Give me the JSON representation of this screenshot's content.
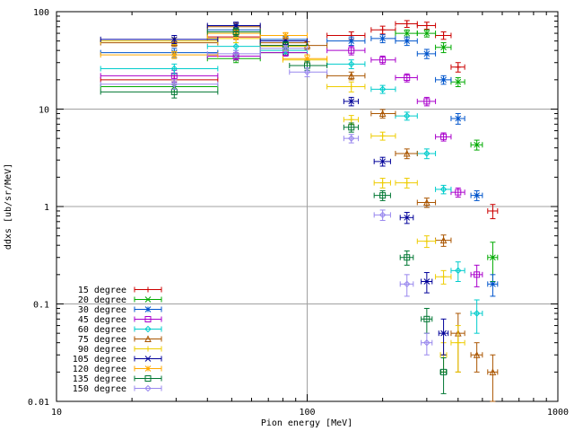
{
  "chart_data": {
    "type": "scatter",
    "xlabel": "Pion energy [MeV]",
    "ylabel": "ddxs [ub/sr/MeV]",
    "x_scale": "log",
    "y_scale": "log",
    "xlim": [
      10,
      1000
    ],
    "ylim": [
      0.01,
      100
    ],
    "grid": true,
    "legend_position": "bottom-left",
    "x_ticks": [
      "10",
      "100",
      "1000"
    ],
    "y_ticks": [
      "0.01",
      "0.1",
      "1",
      "10",
      "100"
    ],
    "series": [
      {
        "name": "15 degree",
        "color": "#cc0000",
        "marker": "plus",
        "points": [
          [
            29.5,
            20,
            15,
            44,
            2
          ],
          [
            52,
            55,
            40,
            65,
            3
          ],
          [
            82,
            45,
            65,
            100,
            3
          ],
          [
            150,
            57,
            120,
            170,
            5
          ],
          [
            200,
            65,
            180,
            225,
            6
          ],
          [
            250,
            75,
            225,
            275,
            6
          ],
          [
            300,
            72,
            275,
            325,
            6
          ],
          [
            350,
            57,
            325,
            375,
            5
          ],
          [
            400,
            27,
            375,
            425,
            3
          ],
          [
            550,
            0.9,
            525,
            575,
            0.15
          ]
        ]
      },
      {
        "name": "20 degree",
        "color": "#00aa00",
        "marker": "cross",
        "points": [
          [
            29.5,
            17,
            15,
            44,
            2
          ],
          [
            52,
            33,
            40,
            65,
            3
          ],
          [
            82,
            38,
            65,
            100,
            3
          ],
          [
            250,
            60,
            225,
            275,
            5
          ],
          [
            300,
            60,
            275,
            325,
            5
          ],
          [
            350,
            43,
            325,
            375,
            5
          ],
          [
            400,
            19,
            375,
            425,
            2
          ],
          [
            475,
            4.3,
            450,
            500,
            0.5
          ],
          [
            550,
            0.3,
            525,
            575,
            0.13
          ]
        ]
      },
      {
        "name": "30 degree",
        "color": "#0055cc",
        "marker": "star",
        "points": [
          [
            29.5,
            38,
            15,
            44,
            4
          ],
          [
            52,
            65,
            40,
            65,
            8
          ],
          [
            82,
            52,
            65,
            100,
            4
          ],
          [
            150,
            50,
            120,
            170,
            5
          ],
          [
            200,
            53,
            180,
            225,
            5
          ],
          [
            250,
            50,
            225,
            275,
            5
          ],
          [
            300,
            37,
            275,
            325,
            4
          ],
          [
            350,
            20,
            325,
            375,
            2
          ],
          [
            400,
            8,
            375,
            425,
            1
          ],
          [
            475,
            1.3,
            450,
            500,
            0.15
          ],
          [
            550,
            0.16,
            525,
            575,
            0.04
          ]
        ]
      },
      {
        "name": "45 degree",
        "color": "#aa00cc",
        "marker": "square",
        "points": [
          [
            29.5,
            22,
            15,
            44,
            3
          ],
          [
            52,
            35,
            40,
            65,
            3
          ],
          [
            82,
            38,
            65,
            100,
            3
          ],
          [
            150,
            40,
            120,
            170,
            4
          ],
          [
            200,
            32,
            180,
            225,
            3
          ],
          [
            250,
            21,
            225,
            275,
            2
          ],
          [
            300,
            12,
            275,
            325,
            1.2
          ],
          [
            350,
            5.2,
            325,
            375,
            0.5
          ],
          [
            400,
            1.4,
            375,
            425,
            0.15
          ],
          [
            475,
            0.2,
            450,
            500,
            0.05
          ]
        ]
      },
      {
        "name": "60 degree",
        "color": "#00cccc",
        "marker": "diamond",
        "points": [
          [
            29.5,
            26,
            15,
            44,
            3
          ],
          [
            52,
            44,
            40,
            65,
            4
          ],
          [
            82,
            40,
            65,
            100,
            3
          ],
          [
            150,
            29,
            120,
            170,
            3
          ],
          [
            200,
            16,
            180,
            225,
            1.5
          ],
          [
            250,
            8.5,
            225,
            275,
            0.8
          ],
          [
            300,
            3.5,
            275,
            325,
            0.4
          ],
          [
            350,
            1.5,
            325,
            375,
            0.15
          ],
          [
            400,
            0.22,
            375,
            425,
            0.05
          ],
          [
            475,
            0.08,
            450,
            500,
            0.03
          ]
        ]
      },
      {
        "name": "75 degree",
        "color": "#aa5500",
        "marker": "triangle",
        "points": [
          [
            29.5,
            48,
            15,
            44,
            4
          ],
          [
            52,
            70,
            40,
            65,
            6
          ],
          [
            82,
            48,
            65,
            100,
            4
          ],
          [
            100,
            45,
            80,
            120,
            4
          ],
          [
            150,
            22,
            120,
            170,
            2
          ],
          [
            200,
            9,
            180,
            225,
            0.9
          ],
          [
            250,
            3.5,
            225,
            275,
            0.4
          ],
          [
            300,
            1.1,
            275,
            325,
            0.12
          ],
          [
            350,
            0.45,
            325,
            375,
            0.06
          ],
          [
            400,
            0.05,
            375,
            425,
            0.03
          ],
          [
            475,
            0.03,
            450,
            500,
            0.01
          ],
          [
            550,
            0.02,
            525,
            575,
            0.01
          ]
        ]
      },
      {
        "name": "90 degree",
        "color": "#eecc00",
        "marker": "plus",
        "points": [
          [
            29.5,
            50,
            15,
            44,
            4
          ],
          [
            52,
            53,
            40,
            65,
            5
          ],
          [
            82,
            44,
            65,
            100,
            4
          ],
          [
            100,
            32,
            80,
            120,
            4
          ],
          [
            150,
            17,
            120,
            170,
            2
          ],
          [
            150,
            7.8,
            140,
            160,
            0.8
          ],
          [
            200,
            5.3,
            180,
            225,
            0.5
          ],
          [
            200,
            1.75,
            185,
            215,
            0.2
          ],
          [
            250,
            1.75,
            225,
            275,
            0.2
          ],
          [
            300,
            0.44,
            275,
            325,
            0.06
          ],
          [
            350,
            0.19,
            325,
            375,
            0.03
          ],
          [
            350,
            0.03,
            340,
            360,
            0.01
          ],
          [
            400,
            0.04,
            375,
            425,
            0.02
          ]
        ]
      },
      {
        "name": "105 degree",
        "color": "#000099",
        "marker": "cross",
        "points": [
          [
            29.5,
            52,
            15,
            44,
            5
          ],
          [
            52,
            72,
            40,
            65,
            6
          ],
          [
            82,
            50,
            65,
            100,
            4
          ],
          [
            150,
            12,
            140,
            160,
            1.2
          ],
          [
            200,
            2.9,
            185,
            215,
            0.3
          ],
          [
            250,
            0.77,
            235,
            265,
            0.1
          ],
          [
            300,
            0.17,
            285,
            315,
            0.04
          ],
          [
            350,
            0.05,
            335,
            365,
            0.02
          ]
        ]
      },
      {
        "name": "120 degree",
        "color": "#ffaa00",
        "marker": "star",
        "points": [
          [
            29.5,
            36,
            15,
            44,
            3
          ],
          [
            52,
            60,
            40,
            65,
            5
          ],
          [
            82,
            57,
            65,
            100,
            4
          ],
          [
            100,
            33,
            80,
            120,
            3
          ]
        ]
      },
      {
        "name": "135 degree",
        "color": "#007733",
        "marker": "square",
        "points": [
          [
            29.5,
            15,
            15,
            44,
            2
          ],
          [
            52,
            62,
            40,
            65,
            6
          ],
          [
            82,
            45,
            65,
            100,
            4
          ],
          [
            100,
            28,
            85,
            120,
            3
          ],
          [
            150,
            6.5,
            140,
            160,
            0.7
          ],
          [
            200,
            1.3,
            185,
            215,
            0.15
          ],
          [
            250,
            0.3,
            235,
            265,
            0.05
          ],
          [
            300,
            0.07,
            285,
            315,
            0.02
          ],
          [
            350,
            0.02,
            340,
            360,
            0.008
          ]
        ]
      },
      {
        "name": "150 degree",
        "color": "#9988ee",
        "marker": "diamond",
        "points": [
          [
            29.5,
            18,
            15,
            44,
            2
          ],
          [
            52,
            37,
            40,
            65,
            3
          ],
          [
            82,
            42,
            65,
            100,
            3
          ],
          [
            100,
            24,
            85,
            120,
            2.5
          ],
          [
            150,
            5,
            140,
            160,
            0.5
          ],
          [
            200,
            0.82,
            185,
            215,
            0.1
          ],
          [
            250,
            0.16,
            235,
            265,
            0.04
          ],
          [
            300,
            0.04,
            285,
            315,
            0.01
          ]
        ]
      }
    ]
  }
}
